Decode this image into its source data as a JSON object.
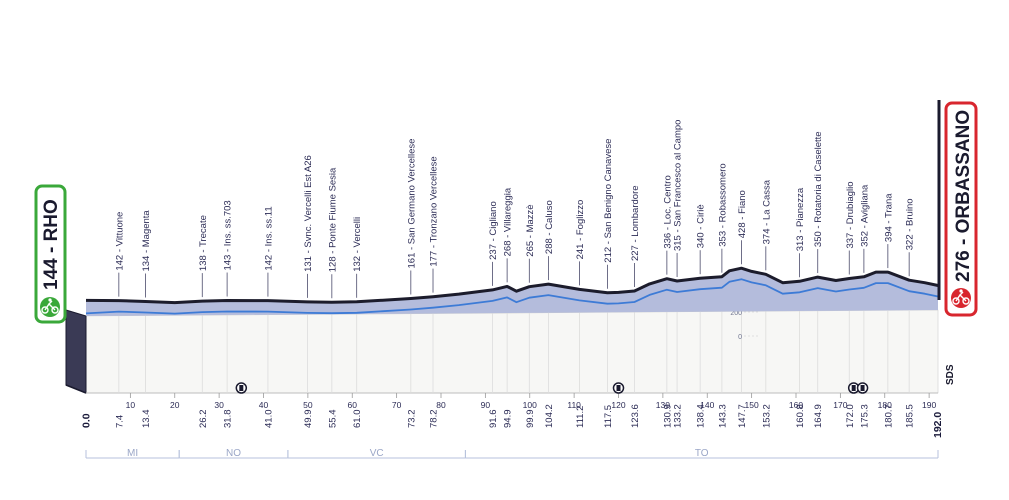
{
  "start": {
    "altitude": "144",
    "name": "RHO",
    "label": "144 - RHO",
    "color": "#3aa83a"
  },
  "finish": {
    "altitude": "276",
    "name": "ORBASSANO",
    "label": "276 - ORBASSANO",
    "color": "#d8262e"
  },
  "sponsor_text": "SDS",
  "total_km": "192.0",
  "chart_data": {
    "type": "area",
    "title": "",
    "xlabel": "",
    "ylabel": "",
    "x_unit": "km",
    "xlim": [
      0,
      192
    ],
    "ylim": [
      0,
      430
    ],
    "y_ticks": [
      "200",
      "0"
    ],
    "x_ticks": [
      "10",
      "20",
      "30",
      "40",
      "50",
      "60",
      "70",
      "80",
      "90",
      "100",
      "110",
      "120",
      "130",
      "140",
      "150",
      "160",
      "170",
      "180",
      "190"
    ],
    "profile": [
      {
        "km": 0.0,
        "alt": 144
      },
      {
        "km": 7.4,
        "alt": 142
      },
      {
        "km": 13.4,
        "alt": 134
      },
      {
        "km": 20.0,
        "alt": 125
      },
      {
        "km": 26.2,
        "alt": 138
      },
      {
        "km": 31.8,
        "alt": 143
      },
      {
        "km": 41.0,
        "alt": 142
      },
      {
        "km": 49.9,
        "alt": 131
      },
      {
        "km": 55.4,
        "alt": 128
      },
      {
        "km": 61.0,
        "alt": 132
      },
      {
        "km": 73.2,
        "alt": 161
      },
      {
        "km": 78.2,
        "alt": 177
      },
      {
        "km": 84.0,
        "alt": 200
      },
      {
        "km": 91.6,
        "alt": 237
      },
      {
        "km": 94.9,
        "alt": 268
      },
      {
        "km": 97.0,
        "alt": 225
      },
      {
        "km": 99.9,
        "alt": 265
      },
      {
        "km": 104.2,
        "alt": 288
      },
      {
        "km": 111.2,
        "alt": 241
      },
      {
        "km": 117.5,
        "alt": 212
      },
      {
        "km": 120.0,
        "alt": 215
      },
      {
        "km": 123.6,
        "alt": 227
      },
      {
        "km": 127.0,
        "alt": 290
      },
      {
        "km": 130.9,
        "alt": 336
      },
      {
        "km": 133.2,
        "alt": 315
      },
      {
        "km": 138.4,
        "alt": 340
      },
      {
        "km": 143.3,
        "alt": 353
      },
      {
        "km": 145.0,
        "alt": 405
      },
      {
        "km": 147.7,
        "alt": 428
      },
      {
        "km": 150.0,
        "alt": 400
      },
      {
        "km": 153.2,
        "alt": 374
      },
      {
        "km": 157.0,
        "alt": 300
      },
      {
        "km": 160.8,
        "alt": 313
      },
      {
        "km": 164.9,
        "alt": 350
      },
      {
        "km": 169.0,
        "alt": 320
      },
      {
        "km": 172.0,
        "alt": 337
      },
      {
        "km": 175.3,
        "alt": 352
      },
      {
        "km": 178.0,
        "alt": 394
      },
      {
        "km": 180.7,
        "alt": 394
      },
      {
        "km": 185.5,
        "alt": 322
      },
      {
        "km": 189.0,
        "alt": 300
      },
      {
        "km": 192.0,
        "alt": 276
      }
    ],
    "waypoints": [
      {
        "km": "7.4",
        "km_num": 7.4,
        "label": "142 - Vittuone"
      },
      {
        "km": "13.4",
        "km_num": 13.4,
        "label": "134 - Magenta"
      },
      {
        "km": "26.2",
        "km_num": 26.2,
        "label": "138 - Trecate"
      },
      {
        "km": "31.8",
        "km_num": 31.8,
        "label": "143 - Ins. ss.703"
      },
      {
        "km": "41.0",
        "km_num": 41.0,
        "label": "142 - Ins. ss.11"
      },
      {
        "km": "49.9",
        "km_num": 49.9,
        "label": "131 - Svnc. Vercelli Est A26"
      },
      {
        "km": "55.4",
        "km_num": 55.4,
        "label": "128 - Ponte Fiume Sesia"
      },
      {
        "km": "61.0",
        "km_num": 61.0,
        "label": "132 - Vercelli"
      },
      {
        "km": "73.2",
        "km_num": 73.2,
        "label": "161 - San Germano Vercellese"
      },
      {
        "km": "78.2",
        "km_num": 78.2,
        "label": "177 - Tronzano Vercellese"
      },
      {
        "km": "91.6",
        "km_num": 91.6,
        "label": "237 - Cigliano"
      },
      {
        "km": "94.9",
        "km_num": 94.9,
        "label": "268 - Villareggia"
      },
      {
        "km": "99.9",
        "km_num": 99.9,
        "label": "265 - Mazzè"
      },
      {
        "km": "104.2",
        "km_num": 104.2,
        "label": "288 - Caluso"
      },
      {
        "km": "111.2",
        "km_num": 111.2,
        "label": "241 - Foglizzo"
      },
      {
        "km": "117.5",
        "km_num": 117.5,
        "label": "212 - San Benigno Canavese"
      },
      {
        "km": "123.6",
        "km_num": 123.6,
        "label": "227 - Lombardore"
      },
      {
        "km": "130.9",
        "km_num": 130.9,
        "label": "336 - Loc. Centro"
      },
      {
        "km": "133.2",
        "km_num": 133.2,
        "label": "315 - San Francesco al Campo"
      },
      {
        "km": "138.4",
        "km_num": 138.4,
        "label": "340 - Ciriè"
      },
      {
        "km": "143.3",
        "km_num": 143.3,
        "label": "353 - Robassomero"
      },
      {
        "km": "147.7",
        "km_num": 147.7,
        "label": "428 - Fiano"
      },
      {
        "km": "153.2",
        "km_num": 153.2,
        "label": "374 - La Cassa"
      },
      {
        "km": "160.8",
        "km_num": 160.8,
        "label": "313 - Pianezza"
      },
      {
        "km": "164.9",
        "km_num": 164.9,
        "label": "350 - Rotatoria  di Caselette"
      },
      {
        "km": "172.0",
        "km_num": 172.0,
        "label": "337 - Drubiaglio"
      },
      {
        "km": "175.3",
        "km_num": 175.3,
        "label": "352 - Avigliana"
      },
      {
        "km": "180.7",
        "km_num": 180.7,
        "label": "394 - Trana"
      },
      {
        "km": "185.5",
        "km_num": 185.5,
        "label": "322 - Bruino"
      }
    ],
    "regions": [
      {
        "name": "MI",
        "from": 0,
        "to": 21
      },
      {
        "name": "NO",
        "from": 21,
        "to": 45.5
      },
      {
        "name": "VC",
        "from": 45.5,
        "to": 85.5
      },
      {
        "name": "TO",
        "from": 85.5,
        "to": 192
      }
    ],
    "markers": [
      {
        "type": "railway-crossing",
        "km": 35
      },
      {
        "type": "railway-crossing",
        "km": 120
      },
      {
        "type": "railway-crossing",
        "km": 173
      },
      {
        "type": "railway-crossing",
        "km": 175
      }
    ],
    "colors": {
      "profile_fill": "#b4bcdc",
      "profile_line": "#1c1c2c",
      "road_line": "#3d7bd6",
      "grid": "#dcdcdc",
      "region_line": "#b7c2dc"
    }
  }
}
